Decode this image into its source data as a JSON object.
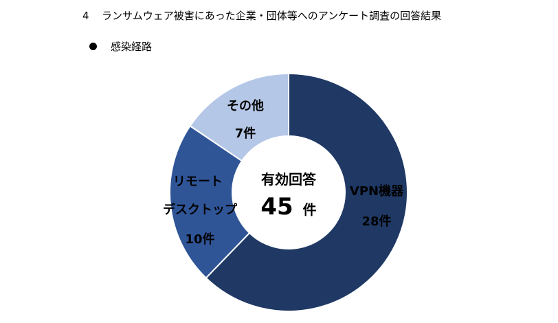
{
  "heading": {
    "number": "4",
    "text": "ランサムウェア被害にあった企業・団体等へのアンケート調査の回答結果"
  },
  "subheading": "感染経路",
  "chart_data": {
    "type": "pie",
    "donut": true,
    "title": "感染経路",
    "center": {
      "title": "有効回答",
      "value": "45",
      "unit": "件"
    },
    "slices": [
      {
        "name": "VPN機器",
        "value": 28,
        "label": "28件",
        "color": "#1f3864"
      },
      {
        "name": "リモートデスクトップ",
        "value": 10,
        "label": "10件",
        "color": "#2f5597"
      },
      {
        "name": "その他",
        "value": 7,
        "label": "7件",
        "color": "#b4c7e7"
      }
    ],
    "total": 45,
    "legend": "none"
  }
}
